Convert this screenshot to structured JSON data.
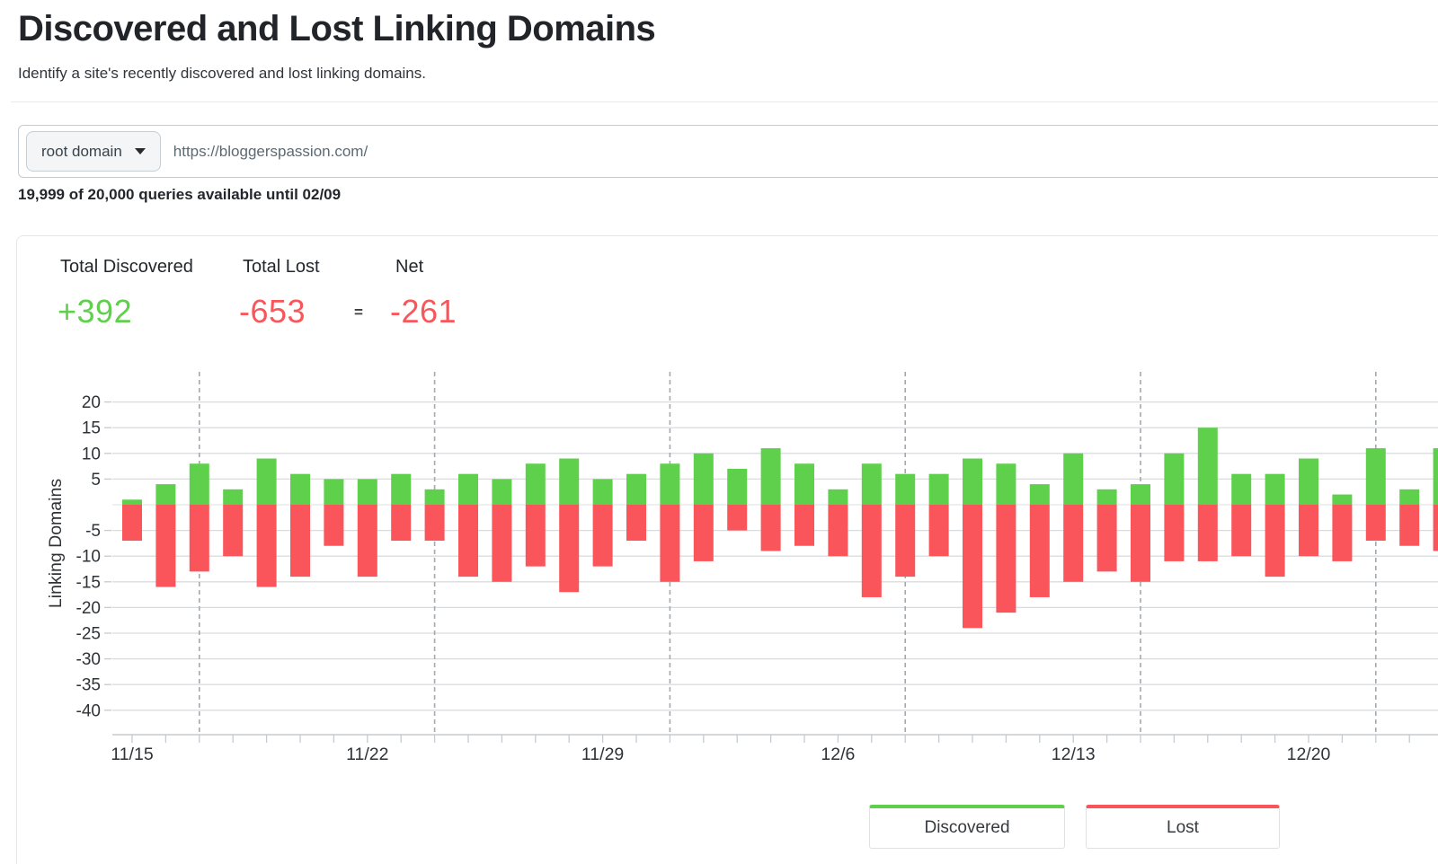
{
  "header": {
    "title": "Discovered and Lost Linking Domains",
    "subtitle": "Identify a site's recently discovered and lost linking domains."
  },
  "search": {
    "scope_label": "root domain",
    "url_value": "https://bloggerspassion.com/",
    "queries_status": "19,999 of 20,000 queries available until 02/09"
  },
  "stats": {
    "discovered_label": "Total Discovered",
    "discovered_value": "+392",
    "lost_label": "Total Lost",
    "lost_value": "-653",
    "equals": "=",
    "net_label": "Net",
    "net_value": "-261"
  },
  "legend": {
    "discovered": "Discovered",
    "lost": "Lost"
  },
  "colors": {
    "green": "#5ed04b",
    "red": "#fa555a",
    "grid": "#d9dcdf",
    "zero_grid": "#e4e6e8",
    "axis": "#c6cbce",
    "dash": "#a4a9ae",
    "text": "#2e3338"
  },
  "chart_data": {
    "type": "bar",
    "title": "",
    "xlabel": "",
    "ylabel": "Linking Domains",
    "ylim": [
      -40,
      20
    ],
    "grid": true,
    "legend_position": "bottom",
    "x": [
      "11/15",
      "11/16",
      "11/17",
      "11/18",
      "11/19",
      "11/20",
      "11/21",
      "11/22",
      "11/23",
      "11/24",
      "11/25",
      "11/26",
      "11/27",
      "11/28",
      "11/29",
      "11/30",
      "12/1",
      "12/2",
      "12/3",
      "12/4",
      "12/5",
      "12/6",
      "12/7",
      "12/8",
      "12/9",
      "12/10",
      "12/11",
      "12/12",
      "12/13",
      "12/14",
      "12/15",
      "12/16",
      "12/17",
      "12/18",
      "12/19",
      "12/20",
      "12/21",
      "12/22",
      "12/23",
      "12/24"
    ],
    "series": [
      {
        "name": "Discovered",
        "values": [
          1,
          4,
          8,
          3,
          9,
          6,
          5,
          5,
          6,
          3,
          6,
          5,
          8,
          9,
          5,
          6,
          8,
          10,
          7,
          11,
          8,
          3,
          8,
          6,
          6,
          9,
          8,
          4,
          10,
          3,
          4,
          10,
          15,
          6,
          6,
          9,
          2,
          11,
          3,
          11
        ]
      },
      {
        "name": "Lost",
        "values": [
          -7,
          -16,
          -13,
          -10,
          -16,
          -14,
          -8,
          -14,
          -7,
          -7,
          -14,
          -15,
          -12,
          -17,
          -12,
          -7,
          -15,
          -11,
          -5,
          -9,
          -8,
          -10,
          -18,
          -14,
          -10,
          -24,
          -21,
          -18,
          -15,
          -13,
          -15,
          -11,
          -11,
          -10,
          -14,
          -10,
          -11,
          -7,
          -8,
          -9
        ]
      }
    ],
    "y_ticks": [
      20,
      15,
      10,
      5,
      0,
      -5,
      -10,
      -15,
      -20,
      -25,
      -30,
      -35,
      -40
    ],
    "x_label_indices": [
      0,
      7,
      14,
      21,
      28,
      35
    ],
    "dashed_line_indices": [
      2,
      9,
      16,
      23,
      30,
      37
    ]
  }
}
